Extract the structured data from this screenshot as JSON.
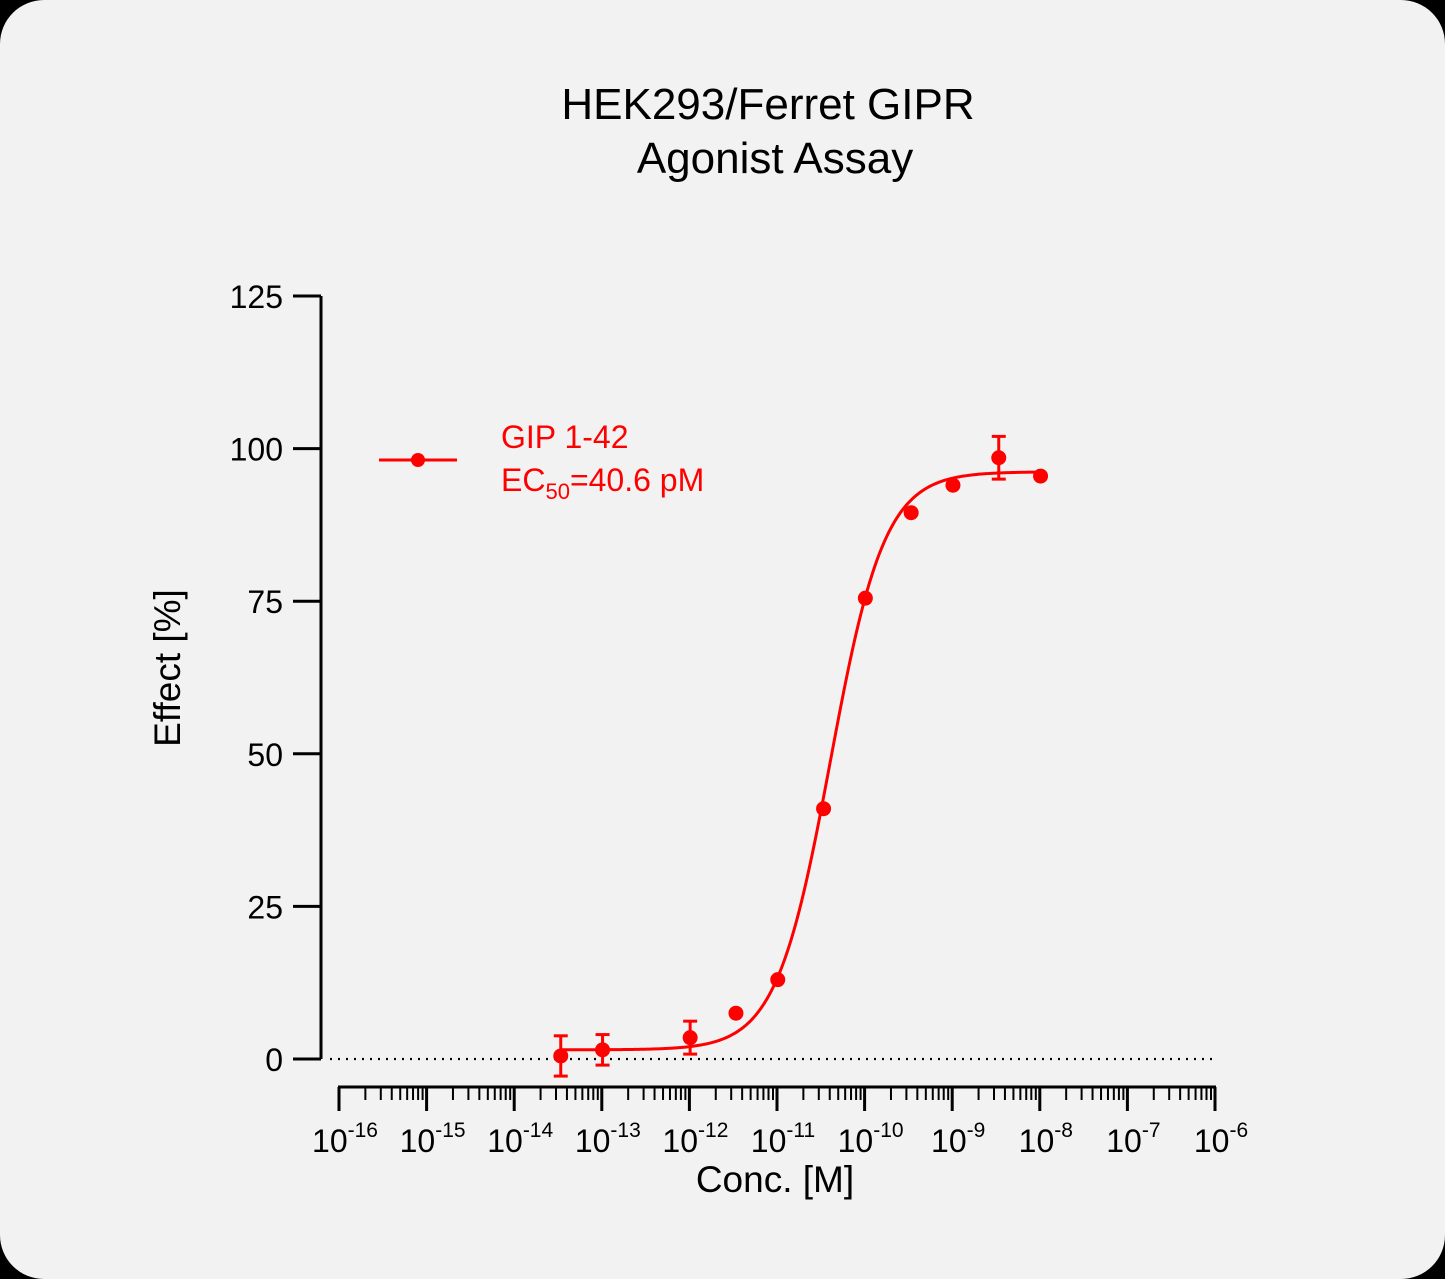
{
  "chart_data": {
    "type": "scatter",
    "title_line1": "HEK293/Ferret GIPR",
    "title_line2": "Agonist Assay",
    "xlabel": "Conc. [M]",
    "ylabel": "Effect  [%]",
    "x_scale": "log",
    "xlim": [
      1e-16,
      1e-06
    ],
    "ylim": [
      0,
      125
    ],
    "y_ticks": [
      0,
      25,
      50,
      75,
      100,
      125
    ],
    "x_tick_exponents": [
      "-16",
      "-15",
      "-14",
      "-13",
      "-12",
      "-11",
      "-10",
      "-9",
      "-8",
      "-7",
      "-6"
    ],
    "x_tick_base": "10",
    "baseline": 0,
    "legend": {
      "name": "GIP 1-42",
      "ec50_prefix": "EC",
      "ec50_sub": "50",
      "ec50_suffix": "=40.6 pM",
      "placement": "top-left"
    },
    "color": "#ff0000",
    "series": [
      {
        "name": "GIP 1-42",
        "x": [
          3.4e-14,
          1.02e-13,
          1.02e-12,
          3.4e-12,
          1.02e-11,
          3.4e-11,
          1.02e-10,
          3.4e-10,
          1.02e-09,
          3.4e-09,
          1.02e-08
        ],
        "y": [
          0.5,
          1.5,
          3.5,
          7.5,
          13,
          41,
          75.5,
          89.5,
          94,
          98.5,
          95.5
        ],
        "err": [
          3.3,
          2.5,
          2.7,
          0,
          0,
          0,
          0,
          0,
          0,
          3.5,
          0
        ]
      }
    ],
    "fit": {
      "bottom": 1.5,
      "top": 96.2,
      "log_ec50": -10.39,
      "hill": 1.4
    }
  }
}
